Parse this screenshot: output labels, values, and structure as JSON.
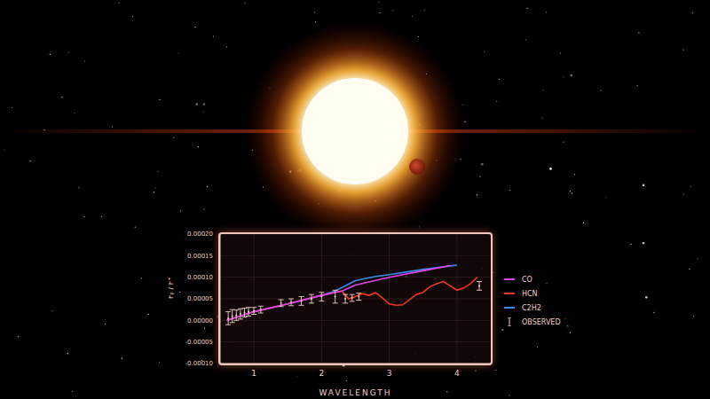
{
  "chart_data": {
    "type": "line",
    "x_label": "WAVELENGTH",
    "y_label": "Fₚ / F*",
    "xlim": [
      0.5,
      4.5
    ],
    "xticks": [
      1,
      2,
      3,
      4
    ],
    "ylim": [
      -0.0001,
      0.0002
    ],
    "yticks": [
      {
        "value": -0.0001,
        "label": "-0.00010"
      },
      {
        "value": -5e-05,
        "label": "-0.00005"
      },
      {
        "value": 0,
        "label": "0.00000"
      },
      {
        "value": 5e-05,
        "label": "0.00005"
      },
      {
        "value": 0.0001,
        "label": "0.00010"
      },
      {
        "value": 0.00015,
        "label": "0.00015"
      },
      {
        "value": 0.0002,
        "label": "0.00020"
      }
    ],
    "grid": true,
    "legend": "right",
    "series": [
      {
        "name": "CO",
        "color": "#e040e8",
        "x": [
          0.6,
          1,
          1.5,
          2,
          2.3,
          2.5,
          3,
          3.5,
          3.9
        ],
        "values": [
          0,
          2e-05,
          3.8e-05,
          5.8e-05,
          6.8e-05,
          8.2e-05,
          0.0001,
          0.000115,
          0.000127
        ]
      },
      {
        "name": "HCN",
        "color": "#f03a1e",
        "x": [
          0.6,
          1,
          1.5,
          2,
          2.2,
          2.3,
          2.4,
          2.5,
          2.6,
          2.7,
          2.8,
          2.9,
          3.0,
          3.1,
          3.2,
          3.3,
          3.4,
          3.5,
          3.6,
          3.7,
          3.8,
          3.9,
          4.0,
          4.1,
          4.2,
          4.3
        ],
        "values": [
          0,
          2e-05,
          3.8e-05,
          5.8e-05,
          6.5e-05,
          6.8e-05,
          5e-05,
          5.5e-05,
          6.2e-05,
          5.8e-05,
          6.4e-05,
          5.2e-05,
          3.8e-05,
          3.5e-05,
          3.6e-05,
          4.8e-05,
          6e-05,
          6.5e-05,
          7.8e-05,
          8.5e-05,
          9e-05,
          8e-05,
          7e-05,
          7.5e-05,
          8.5e-05,
          0.0001
        ]
      },
      {
        "name": "C2H2",
        "color": "#3a8ef0",
        "x": [
          0.6,
          1,
          1.5,
          2,
          2.2,
          2.5,
          2.8,
          3,
          3.5,
          4
        ],
        "values": [
          0,
          2e-05,
          3.8e-05,
          5.8e-05,
          6.8e-05,
          9.2e-05,
          0.000102,
          0.000106,
          0.000118,
          0.000128
        ]
      }
    ],
    "observed": {
      "name": "OBSERVED",
      "color": "#f2d2c8",
      "x": [
        0.62,
        0.68,
        0.74,
        0.8,
        0.86,
        0.92,
        1.0,
        1.1,
        1.4,
        1.55,
        1.7,
        1.85,
        2.0,
        2.2,
        2.35,
        2.45,
        2.55,
        4.33
      ],
      "values": [
        5e-06,
        1e-05,
        1.2e-05,
        1.5e-05,
        1.8e-05,
        2e-05,
        2.2e-05,
        2.5e-05,
        4e-05,
        4.2e-05,
        4.5e-05,
        5e-05,
        5.5e-05,
        5.5e-05,
        5e-05,
        5.2e-05,
        5.5e-05,
        8e-05
      ],
      "errors": [
        1.5e-05,
        1.5e-05,
        1.2e-05,
        1.2e-05,
        1e-05,
        1e-05,
        8e-06,
        8e-06,
        8e-06,
        8e-06,
        1e-05,
        1e-05,
        1e-05,
        1.5e-05,
        1e-05,
        8e-06,
        8e-06,
        1e-05
      ]
    }
  }
}
